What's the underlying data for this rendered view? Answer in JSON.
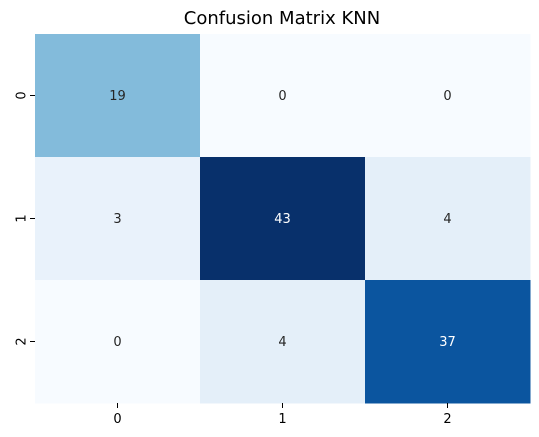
{
  "chart_data": {
    "type": "heatmap",
    "title": "Confusion Matrix KNN",
    "xlabel": "",
    "ylabel": "",
    "x_categories": [
      "0",
      "1",
      "2"
    ],
    "y_categories": [
      "0",
      "1",
      "2"
    ],
    "values": [
      [
        19,
        0,
        0
      ],
      [
        3,
        43,
        4
      ],
      [
        0,
        4,
        37
      ]
    ],
    "colormap": "Blues",
    "color_range": [
      0,
      43
    ],
    "colorbar": false,
    "annotations": true
  }
}
